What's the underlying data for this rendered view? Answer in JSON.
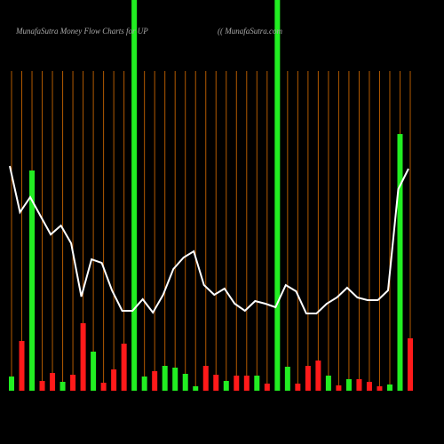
{
  "chart_data": {
    "type": "bar",
    "title": "MunafaSutra  Money Flow  Charts for UP",
    "subtitle": "(( MunafaSutra.com",
    "categories": [
      null,
      null,
      null,
      null,
      null,
      null,
      null,
      null,
      null,
      null,
      null,
      null,
      null,
      null,
      null,
      null,
      null,
      null,
      null,
      null,
      null,
      null,
      null,
      null,
      null,
      null,
      null,
      null,
      null,
      null,
      null,
      null,
      null,
      null,
      null,
      null,
      null,
      null,
      null,
      null
    ],
    "ylim": [
      0,
      440
    ],
    "grid_color": "#b35a00",
    "series": [
      {
        "color": "#22ee22",
        "values": [
          16,
          null,
          248,
          null,
          null,
          10,
          null,
          null,
          44,
          null,
          null,
          null,
          440,
          16,
          null,
          28,
          26,
          19,
          5,
          null,
          null,
          11,
          null,
          null,
          17,
          null,
          440,
          27,
          null,
          null,
          null,
          17,
          null,
          13,
          null,
          null,
          null,
          7,
          289,
          null
        ]
      },
      {
        "color": "#ff1a1a",
        "values": [
          null,
          56,
          null,
          11,
          20,
          null,
          18,
          76,
          null,
          9,
          24,
          53,
          null,
          null,
          22,
          null,
          null,
          null,
          null,
          28,
          18,
          null,
          17,
          17,
          null,
          8,
          null,
          null,
          8,
          28,
          34,
          null,
          6,
          null,
          13,
          10,
          5,
          null,
          null,
          59
        ]
      }
    ],
    "line": {
      "color": "#ffffff",
      "values": [
        253,
        201,
        218,
        197,
        176,
        186,
        166,
        106,
        148,
        144,
        113,
        90,
        90,
        103,
        88,
        108,
        137,
        150,
        157,
        119,
        108,
        115,
        98,
        90,
        101,
        98,
        94,
        119,
        112,
        87,
        87,
        98,
        105,
        116,
        105,
        102,
        102,
        113,
        227,
        250
      ]
    }
  }
}
